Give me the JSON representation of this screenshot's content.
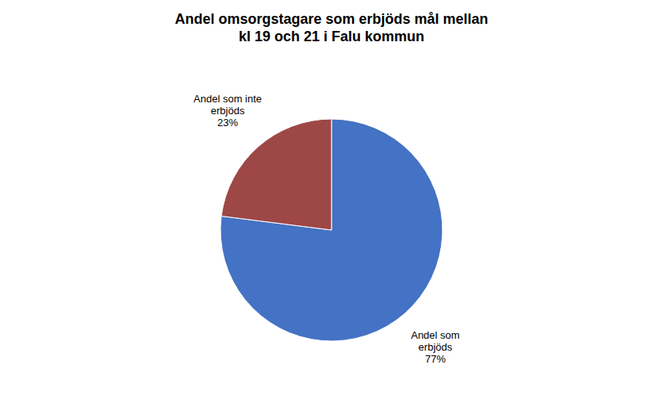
{
  "chart_data": {
    "type": "pie",
    "title": "Andel omsorgstagare som erbjöds mål mellan\nkl 19 och 21 i Falu kommun",
    "values": [
      77,
      23
    ],
    "value_labels": [
      "Andel som\nerbjöds\n77%",
      "Andel som inte\nerbjöds\n23%"
    ],
    "colors": [
      "#4472C4",
      "#9E4747"
    ],
    "data_labels": true
  }
}
